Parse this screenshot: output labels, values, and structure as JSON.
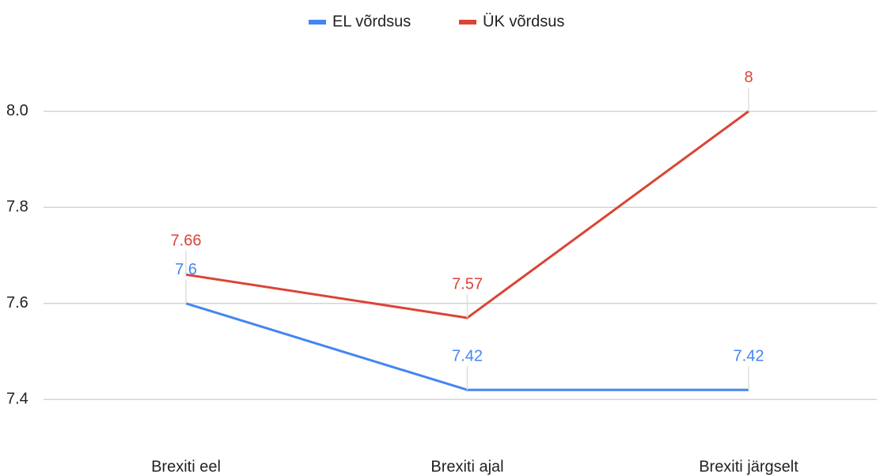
{
  "chart_data": {
    "type": "line",
    "categories": [
      "Brexiti eel",
      "Brexiti ajal",
      "Brexiti järgselt"
    ],
    "series": [
      {
        "name": "EL võrdsus",
        "color": "#4285f4",
        "values": [
          7.6,
          7.42,
          7.42
        ]
      },
      {
        "name": "ÜK võrdsus",
        "color": "#db4437",
        "values": [
          7.66,
          7.57,
          8
        ]
      }
    ],
    "ylim": [
      7.3,
      8.1
    ],
    "yticks": [
      7.4,
      7.6,
      7.8,
      {
        "value": 8,
        "label": "8.0"
      }
    ],
    "grid": true,
    "legend": "top",
    "data_labels": true
  }
}
